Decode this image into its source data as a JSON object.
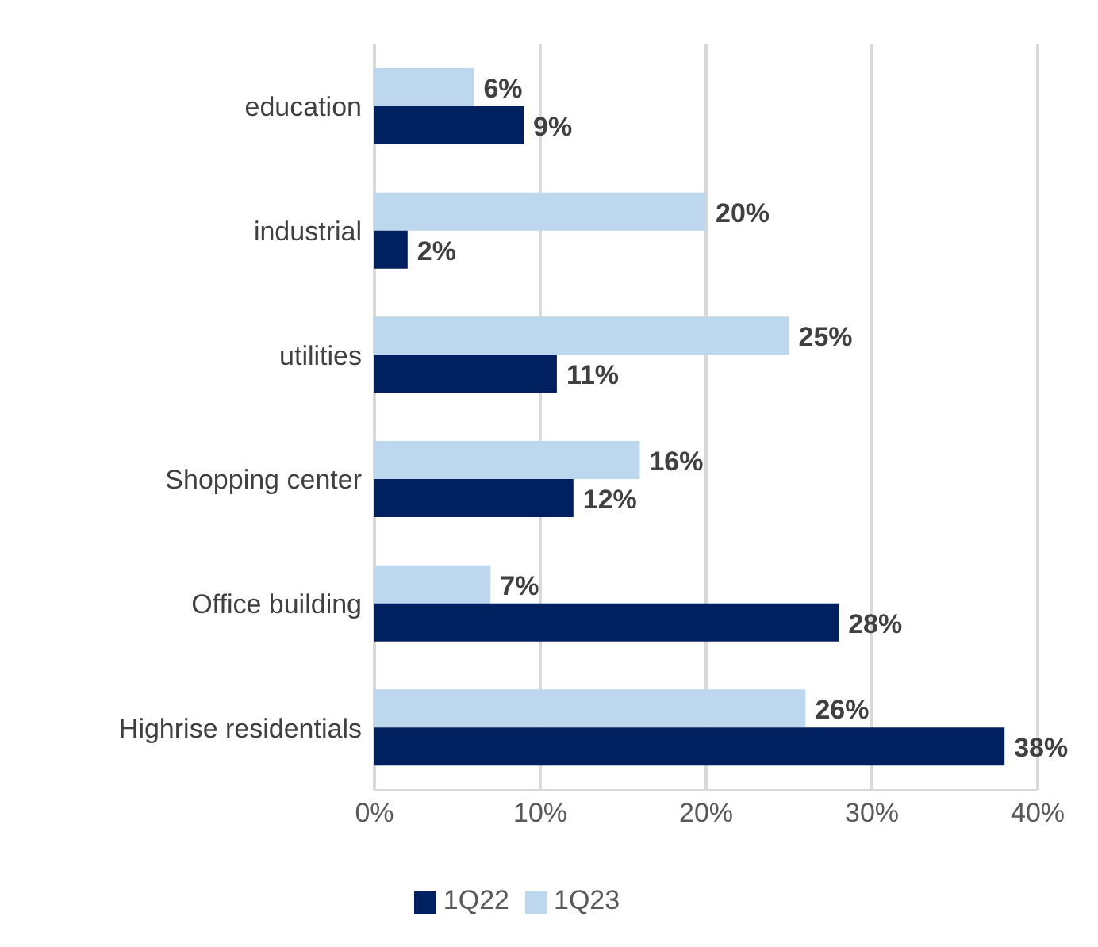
{
  "chart_data": {
    "type": "bar",
    "orientation": "horizontal",
    "categories": [
      "education",
      "industrial",
      "utilities",
      "Shopping center",
      "Office building",
      "Highrise residentials"
    ],
    "series": [
      {
        "name": "1Q23",
        "color": "#bdd7ee",
        "values": [
          6,
          20,
          25,
          16,
          7,
          26
        ],
        "value_labels": [
          "6%",
          "20%",
          "25%",
          "16%",
          "7%",
          "26%"
        ]
      },
      {
        "name": "1Q22",
        "color": "#002060",
        "values": [
          9,
          2,
          11,
          12,
          28,
          38
        ],
        "value_labels": [
          "9%",
          "2%",
          "11%",
          "12%",
          "28%",
          "38%"
        ]
      }
    ],
    "xlim": [
      0,
      40
    ],
    "xticks": [
      {
        "value": 0,
        "label": "0%"
      },
      {
        "value": 10,
        "label": "10%"
      },
      {
        "value": 20,
        "label": "20%"
      },
      {
        "value": 30,
        "label": "30%"
      },
      {
        "value": 40,
        "label": "40%"
      }
    ],
    "grid": "x",
    "legend": "bottom"
  }
}
